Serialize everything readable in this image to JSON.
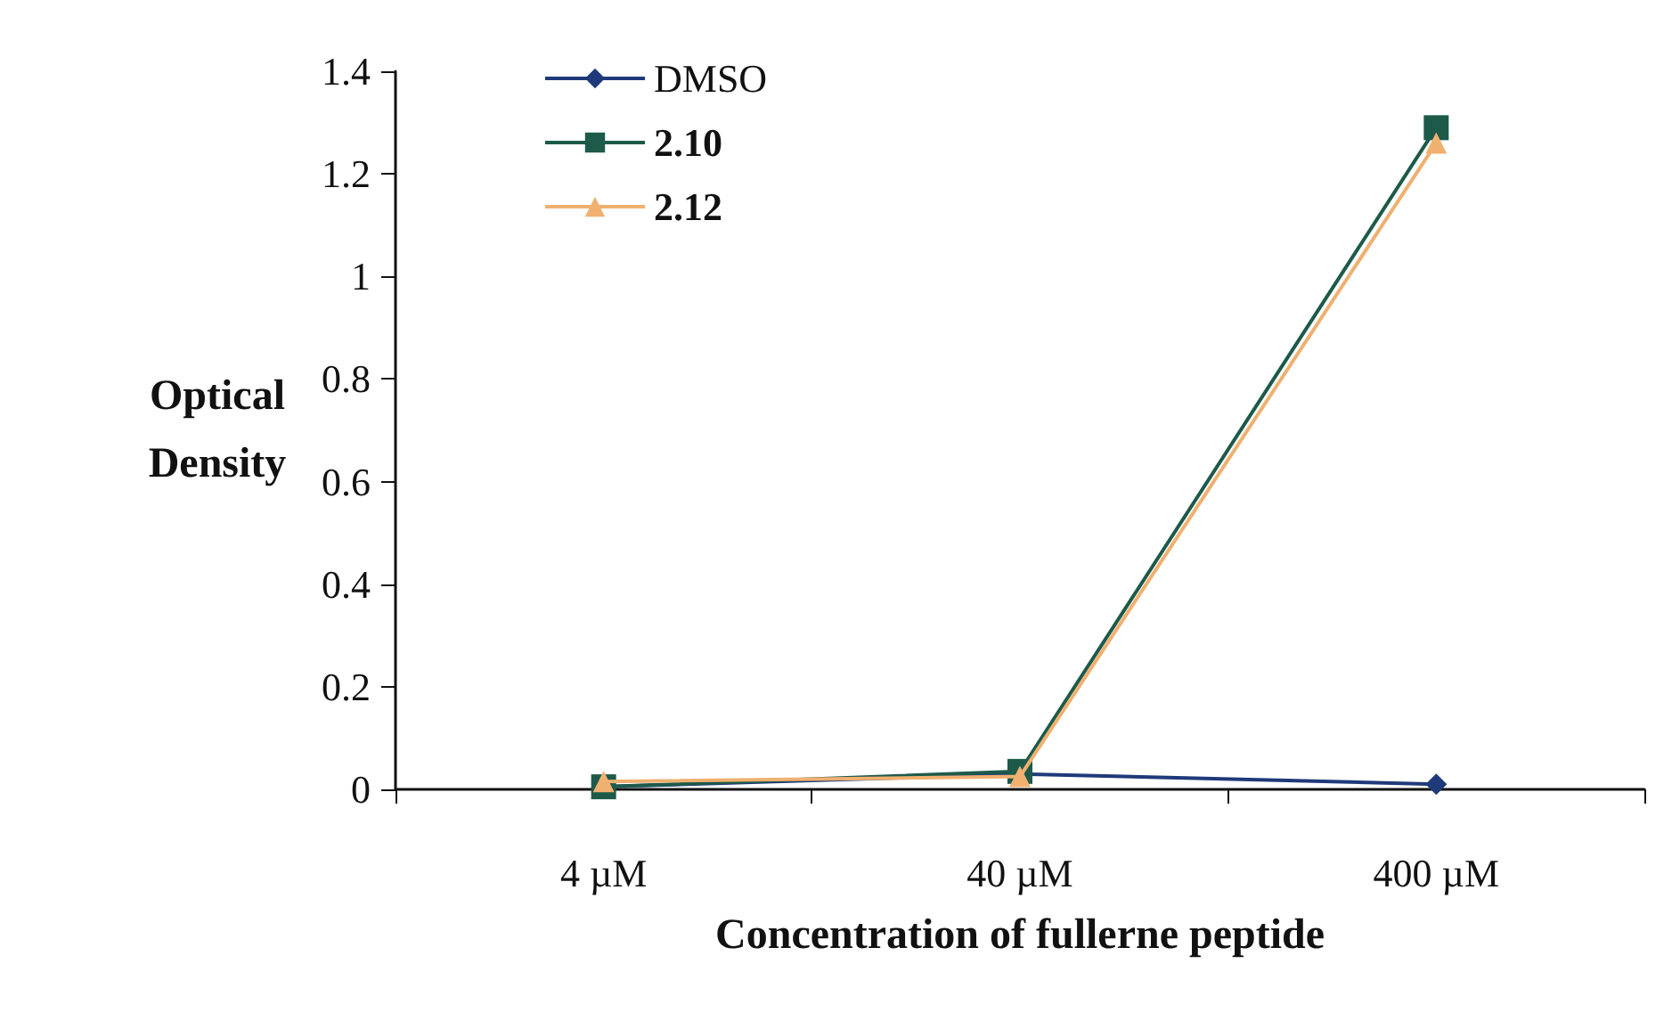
{
  "chart_data": {
    "type": "line",
    "xlabel": "Concentration of fullerne peptide",
    "ylabel": "Optical\nDensity",
    "categories": [
      "4 µM",
      "40 µM",
      "400 µM"
    ],
    "series": [
      {
        "name": "DMSO",
        "color": "#1f3a7a",
        "marker": "diamond",
        "values": [
          0.005,
          0.03,
          0.01
        ]
      },
      {
        "name": "2.10",
        "color": "#1d5a4a",
        "marker": "square",
        "values": [
          0.005,
          0.035,
          1.29
        ]
      },
      {
        "name": "2.12",
        "color": "#f0b070",
        "marker": "triangle",
        "values": [
          0.015,
          0.025,
          1.26
        ]
      }
    ],
    "ylim": [
      0,
      1.4
    ],
    "yticks": [
      0,
      0.2,
      0.4,
      0.6,
      0.8,
      1,
      1.2,
      1.4
    ],
    "grid": false,
    "legend": "top left",
    "line_style": "solid"
  }
}
